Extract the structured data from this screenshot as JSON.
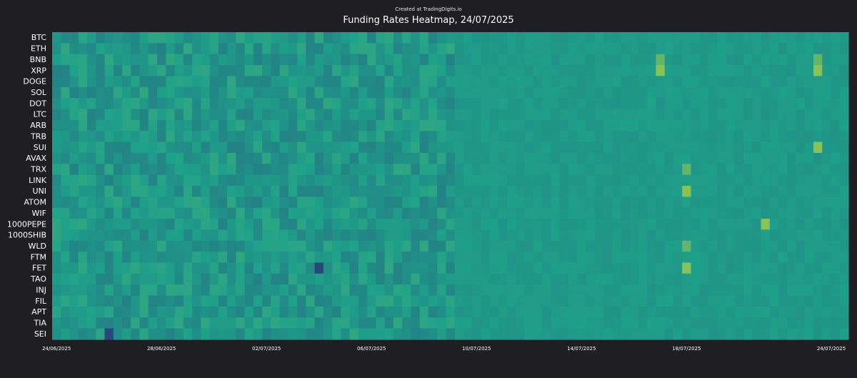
{
  "credit": "Created at TradingDigits.io",
  "chart_data": {
    "type": "heatmap",
    "title": "Funding Rates Heatmap, 24/07/2025",
    "xlabel": "",
    "ylabel": "",
    "rows": [
      "BTC",
      "ETH",
      "BNB",
      "XRP",
      "DOGE",
      "SOL",
      "DOT",
      "LTC",
      "ARB",
      "TRB",
      "SUI",
      "AVAX",
      "TRX",
      "LINK",
      "UNI",
      "ATOM",
      "WIF",
      "1000PEPE",
      "1000SHIB",
      "WLD",
      "FTM",
      "FET",
      "TAO",
      "INJ",
      "FIL",
      "APT",
      "TIA",
      "SEI"
    ],
    "x_start": "24/06/2025",
    "x_end": "24/07/2025",
    "samples_per_day": 3,
    "x_tick_labels": [
      "24/06/2025",
      "28/06/2025",
      "02/07/2025",
      "06/07/2025",
      "10/07/2025",
      "14/07/2025",
      "18/07/2025",
      "24/07/2025"
    ],
    "colormap": "viridis",
    "colors": {
      "low": "#2c3a78",
      "mid": "#1fa18a",
      "high": "#c8d43a"
    },
    "highlights": [
      {
        "row": "BNB",
        "date": "17/07/2025",
        "level": "elevated"
      },
      {
        "row": "BNB",
        "date": "23/07/2025",
        "level": "elevated"
      },
      {
        "row": "XRP",
        "date": "17/07/2025",
        "level": "high"
      },
      {
        "row": "XRP",
        "date": "23/07/2025",
        "level": "high"
      },
      {
        "row": "SUI",
        "date": "23/07/2025",
        "level": "high"
      },
      {
        "row": "TRX",
        "date": "18/07/2025",
        "level": "elevated"
      },
      {
        "row": "UNI",
        "date": "18/07/2025",
        "level": "high"
      },
      {
        "row": "1000PEPE",
        "date": "21/07/2025",
        "level": "high"
      },
      {
        "row": "WLD",
        "date": "18/07/2025",
        "level": "elevated"
      },
      {
        "row": "FET",
        "date": "18/07/2025",
        "level": "high"
      },
      {
        "row": "FET",
        "date": "04/07/2025",
        "level": "low"
      },
      {
        "row": "SEI",
        "date": "26/06/2025",
        "level": "low"
      }
    ]
  }
}
